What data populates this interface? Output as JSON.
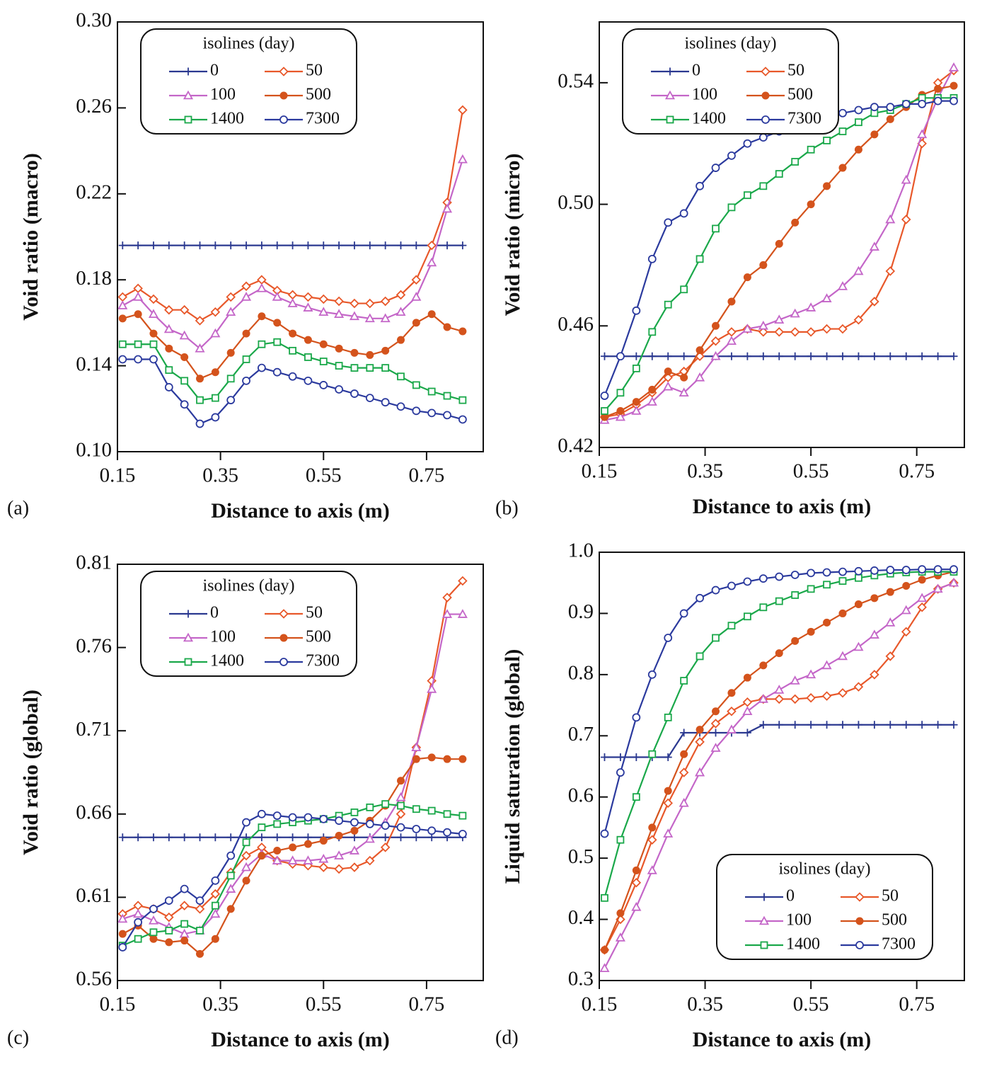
{
  "chart_data": [
    {
      "type": "line",
      "panel": "(a)",
      "xlabel": "Distance to axis (m)",
      "ylabel": "Void ratio (macro)",
      "xlim": [
        0.15,
        0.86
      ],
      "xticks": [
        0.15,
        0.35,
        0.55,
        0.75
      ],
      "ylim": [
        0.1,
        0.3
      ],
      "yticks": [
        {
          "value": 0.1,
          "label": "0.10"
        },
        0.14,
        0.18,
        0.22,
        0.26,
        {
          "value": 0.3,
          "label": "0.30"
        }
      ],
      "legend": "upper left",
      "legend_title": "isolines (day)",
      "x": [
        0.16,
        0.19,
        0.22,
        0.25,
        0.28,
        0.31,
        0.34,
        0.37,
        0.4,
        0.43,
        0.46,
        0.49,
        0.52,
        0.55,
        0.58,
        0.61,
        0.64,
        0.67,
        0.7,
        0.73,
        0.76,
        0.79,
        0.82
      ],
      "series": [
        {
          "name": "0",
          "color": "#2b3990",
          "marker": "plus",
          "values": [
            0.196,
            0.196,
            0.196,
            0.196,
            0.196,
            0.196,
            0.196,
            0.196,
            0.196,
            0.196,
            0.196,
            0.196,
            0.196,
            0.196,
            0.196,
            0.196,
            0.196,
            0.196,
            0.196,
            0.196,
            0.196,
            0.196,
            0.196
          ]
        },
        {
          "name": "50",
          "color": "#e8582a",
          "marker": "diamond",
          "values": [
            0.172,
            0.176,
            0.171,
            0.166,
            0.166,
            0.161,
            0.165,
            0.172,
            0.177,
            0.18,
            0.175,
            0.173,
            0.172,
            0.171,
            0.17,
            0.169,
            0.169,
            0.17,
            0.173,
            0.18,
            0.196,
            0.216,
            0.259
          ]
        },
        {
          "name": "100",
          "color": "#c466c8",
          "marker": "triangle",
          "values": [
            0.168,
            0.172,
            0.164,
            0.157,
            0.154,
            0.148,
            0.155,
            0.165,
            0.172,
            0.176,
            0.172,
            0.169,
            0.167,
            0.165,
            0.164,
            0.163,
            0.162,
            0.162,
            0.165,
            0.172,
            0.188,
            0.213,
            0.236
          ]
        },
        {
          "name": "500",
          "color": "#d4531c",
          "marker": "dot",
          "values": [
            0.162,
            0.164,
            0.155,
            0.148,
            0.144,
            0.134,
            0.137,
            0.146,
            0.155,
            0.163,
            0.16,
            0.155,
            0.152,
            0.15,
            0.148,
            0.146,
            0.145,
            0.147,
            0.152,
            0.16,
            0.164,
            0.158,
            0.156
          ]
        },
        {
          "name": "1400",
          "color": "#1aa84a",
          "marker": "square",
          "values": [
            0.15,
            0.15,
            0.15,
            0.138,
            0.133,
            0.124,
            0.125,
            0.134,
            0.143,
            0.15,
            0.151,
            0.147,
            0.144,
            0.142,
            0.14,
            0.139,
            0.139,
            0.139,
            0.135,
            0.131,
            0.128,
            0.126,
            0.124
          ]
        },
        {
          "name": "7300",
          "color": "#2b3a9e",
          "marker": "circle",
          "values": [
            0.143,
            0.143,
            0.143,
            0.13,
            0.122,
            0.113,
            0.116,
            0.124,
            0.133,
            0.139,
            0.137,
            0.135,
            0.133,
            0.131,
            0.129,
            0.127,
            0.125,
            0.123,
            0.121,
            0.119,
            0.118,
            0.117,
            0.115
          ]
        }
      ]
    },
    {
      "type": "line",
      "panel": "(b)",
      "xlabel": "Distance to axis (m)",
      "ylabel": "Void ratio (micro)",
      "xlim": [
        0.15,
        0.84
      ],
      "xticks": [
        0.15,
        0.35,
        0.55,
        0.75
      ],
      "ylim": [
        0.42,
        0.56
      ],
      "yticks": [
        0.42,
        0.46,
        {
          "value": 0.5,
          "label": "0.50"
        },
        0.54
      ],
      "legend": "upper left",
      "legend_title": "isolines (day)",
      "x": [
        0.16,
        0.19,
        0.22,
        0.25,
        0.28,
        0.31,
        0.34,
        0.37,
        0.4,
        0.43,
        0.46,
        0.49,
        0.52,
        0.55,
        0.58,
        0.61,
        0.64,
        0.67,
        0.7,
        0.73,
        0.76,
        0.79,
        0.82
      ],
      "series": [
        {
          "name": "0",
          "color": "#2b3990",
          "marker": "plus",
          "values": [
            0.45,
            0.45,
            0.45,
            0.45,
            0.45,
            0.45,
            0.45,
            0.45,
            0.45,
            0.45,
            0.45,
            0.45,
            0.45,
            0.45,
            0.45,
            0.45,
            0.45,
            0.45,
            0.45,
            0.45,
            0.45,
            0.45,
            0.45
          ]
        },
        {
          "name": "50",
          "color": "#e8582a",
          "marker": "diamond",
          "values": [
            0.43,
            0.431,
            0.434,
            0.438,
            0.443,
            0.445,
            0.45,
            0.455,
            0.458,
            0.459,
            0.458,
            0.458,
            0.458,
            0.458,
            0.459,
            0.459,
            0.462,
            0.468,
            0.478,
            0.495,
            0.52,
            0.54,
            0.544
          ]
        },
        {
          "name": "100",
          "color": "#c466c8",
          "marker": "triangle",
          "values": [
            0.429,
            0.43,
            0.432,
            0.435,
            0.44,
            0.438,
            0.443,
            0.45,
            0.455,
            0.459,
            0.46,
            0.462,
            0.464,
            0.466,
            0.469,
            0.473,
            0.478,
            0.486,
            0.495,
            0.508,
            0.523,
            0.535,
            0.545
          ]
        },
        {
          "name": "500",
          "color": "#d4531c",
          "marker": "dot",
          "values": [
            0.43,
            0.432,
            0.435,
            0.439,
            0.445,
            0.443,
            0.452,
            0.46,
            0.468,
            0.476,
            0.48,
            0.487,
            0.494,
            0.5,
            0.506,
            0.512,
            0.518,
            0.523,
            0.528,
            0.532,
            0.536,
            0.538,
            0.539
          ]
        },
        {
          "name": "1400",
          "color": "#1aa84a",
          "marker": "square",
          "values": [
            0.432,
            0.438,
            0.446,
            0.458,
            0.467,
            0.472,
            0.482,
            0.492,
            0.499,
            0.503,
            0.506,
            0.51,
            0.514,
            0.518,
            0.521,
            0.524,
            0.527,
            0.53,
            0.531,
            0.533,
            0.535,
            0.535,
            0.535
          ]
        },
        {
          "name": "7300",
          "color": "#2b3a9e",
          "marker": "circle",
          "values": [
            0.437,
            0.45,
            0.465,
            0.482,
            0.494,
            0.497,
            0.506,
            0.512,
            0.516,
            0.52,
            0.522,
            0.524,
            0.526,
            0.528,
            0.529,
            0.53,
            0.531,
            0.532,
            0.532,
            0.533,
            0.533,
            0.534,
            0.534
          ]
        }
      ]
    },
    {
      "type": "line",
      "panel": "(c)",
      "xlabel": "Distance to axis (m)",
      "ylabel": "Void ratio (global)",
      "xlim": [
        0.15,
        0.86
      ],
      "xticks": [
        0.15,
        0.35,
        0.55,
        0.75
      ],
      "ylim": [
        0.56,
        0.81
      ],
      "yticks": [
        0.56,
        0.61,
        0.66,
        0.71,
        0.76,
        0.81
      ],
      "legend": "upper left",
      "legend_title": "isolines (day)",
      "x": [
        0.16,
        0.19,
        0.22,
        0.25,
        0.28,
        0.31,
        0.34,
        0.37,
        0.4,
        0.43,
        0.46,
        0.49,
        0.52,
        0.55,
        0.58,
        0.61,
        0.64,
        0.67,
        0.7,
        0.73,
        0.76,
        0.79,
        0.82
      ],
      "series": [
        {
          "name": "0",
          "color": "#2b3990",
          "marker": "plus",
          "values": [
            0.646,
            0.646,
            0.646,
            0.646,
            0.646,
            0.646,
            0.646,
            0.646,
            0.646,
            0.646,
            0.646,
            0.646,
            0.646,
            0.646,
            0.646,
            0.646,
            0.646,
            0.646,
            0.646,
            0.646,
            0.646,
            0.646,
            0.646
          ]
        },
        {
          "name": "50",
          "color": "#e8582a",
          "marker": "diamond",
          "values": [
            0.6,
            0.605,
            0.603,
            0.598,
            0.605,
            0.603,
            0.612,
            0.625,
            0.635,
            0.64,
            0.632,
            0.63,
            0.629,
            0.628,
            0.627,
            0.628,
            0.632,
            0.64,
            0.66,
            0.7,
            0.74,
            0.79,
            0.8
          ]
        },
        {
          "name": "100",
          "color": "#c466c8",
          "marker": "triangle",
          "values": [
            0.597,
            0.6,
            0.596,
            0.592,
            0.588,
            0.59,
            0.6,
            0.615,
            0.628,
            0.636,
            0.632,
            0.632,
            0.632,
            0.633,
            0.635,
            0.638,
            0.645,
            0.655,
            0.67,
            0.7,
            0.735,
            0.78,
            0.78
          ]
        },
        {
          "name": "500",
          "color": "#d4531c",
          "marker": "dot",
          "values": [
            0.588,
            0.593,
            0.585,
            0.583,
            0.584,
            0.576,
            0.585,
            0.603,
            0.62,
            0.635,
            0.638,
            0.64,
            0.642,
            0.644,
            0.647,
            0.65,
            0.656,
            0.665,
            0.68,
            0.693,
            0.694,
            0.693,
            0.693
          ]
        },
        {
          "name": "1400",
          "color": "#1aa84a",
          "marker": "square",
          "values": [
            0.581,
            0.585,
            0.589,
            0.59,
            0.594,
            0.59,
            0.605,
            0.623,
            0.643,
            0.652,
            0.654,
            0.655,
            0.656,
            0.657,
            0.659,
            0.661,
            0.664,
            0.666,
            0.665,
            0.663,
            0.662,
            0.66,
            0.659
          ]
        },
        {
          "name": "7300",
          "color": "#2b3a9e",
          "marker": "circle",
          "values": [
            0.58,
            0.595,
            0.603,
            0.608,
            0.615,
            0.608,
            0.62,
            0.635,
            0.655,
            0.66,
            0.659,
            0.658,
            0.658,
            0.657,
            0.656,
            0.655,
            0.654,
            0.653,
            0.652,
            0.651,
            0.65,
            0.649,
            0.648
          ]
        }
      ]
    },
    {
      "type": "line",
      "panel": "(d)",
      "xlabel": "Distance to axis (m)",
      "ylabel": "Liquid saturation (global)",
      "xlim": [
        0.15,
        0.84
      ],
      "xticks": [
        0.15,
        0.35,
        0.55,
        0.75
      ],
      "ylim": [
        0.3,
        1.0
      ],
      "yticks": [
        0.3,
        0.4,
        0.5,
        0.6,
        0.7,
        0.8,
        0.9,
        {
          "value": 1.0,
          "label": "1.0"
        }
      ],
      "legend": "lower right",
      "legend_title": "isolines (day)",
      "x": [
        0.16,
        0.19,
        0.22,
        0.25,
        0.28,
        0.31,
        0.34,
        0.37,
        0.4,
        0.43,
        0.46,
        0.49,
        0.52,
        0.55,
        0.58,
        0.61,
        0.64,
        0.67,
        0.7,
        0.73,
        0.76,
        0.79,
        0.82
      ],
      "series": [
        {
          "name": "0",
          "color": "#2b3990",
          "marker": "plus",
          "values": [
            0.665,
            0.665,
            0.665,
            0.665,
            0.665,
            0.705,
            0.705,
            0.705,
            0.705,
            0.705,
            0.718,
            0.718,
            0.718,
            0.718,
            0.718,
            0.718,
            0.718,
            0.718,
            0.718,
            0.718,
            0.718,
            0.718,
            0.718
          ]
        },
        {
          "name": "50",
          "color": "#e8582a",
          "marker": "diamond",
          "values": [
            0.35,
            0.4,
            0.46,
            0.53,
            0.59,
            0.64,
            0.69,
            0.72,
            0.74,
            0.755,
            0.76,
            0.76,
            0.76,
            0.762,
            0.765,
            0.77,
            0.78,
            0.8,
            0.83,
            0.87,
            0.91,
            0.94,
            0.95
          ]
        },
        {
          "name": "100",
          "color": "#c466c8",
          "marker": "triangle",
          "values": [
            0.32,
            0.37,
            0.42,
            0.48,
            0.54,
            0.59,
            0.64,
            0.68,
            0.71,
            0.74,
            0.76,
            0.775,
            0.79,
            0.8,
            0.815,
            0.83,
            0.845,
            0.865,
            0.885,
            0.905,
            0.925,
            0.94,
            0.95
          ]
        },
        {
          "name": "500",
          "color": "#d4531c",
          "marker": "dot",
          "values": [
            0.35,
            0.41,
            0.48,
            0.55,
            0.61,
            0.67,
            0.71,
            0.74,
            0.77,
            0.795,
            0.815,
            0.835,
            0.855,
            0.87,
            0.885,
            0.9,
            0.915,
            0.925,
            0.935,
            0.945,
            0.955,
            0.962,
            0.968
          ]
        },
        {
          "name": "1400",
          "color": "#1aa84a",
          "marker": "square",
          "values": [
            0.435,
            0.53,
            0.6,
            0.67,
            0.73,
            0.79,
            0.83,
            0.86,
            0.88,
            0.895,
            0.91,
            0.92,
            0.93,
            0.94,
            0.947,
            0.953,
            0.958,
            0.962,
            0.965,
            0.967,
            0.968,
            0.968,
            0.968
          ]
        },
        {
          "name": "7300",
          "color": "#2b3a9e",
          "marker": "circle",
          "values": [
            0.54,
            0.64,
            0.73,
            0.8,
            0.86,
            0.9,
            0.925,
            0.938,
            0.945,
            0.952,
            0.957,
            0.96,
            0.963,
            0.966,
            0.967,
            0.968,
            0.969,
            0.97,
            0.971,
            0.971,
            0.972,
            0.972,
            0.972
          ]
        }
      ]
    }
  ]
}
